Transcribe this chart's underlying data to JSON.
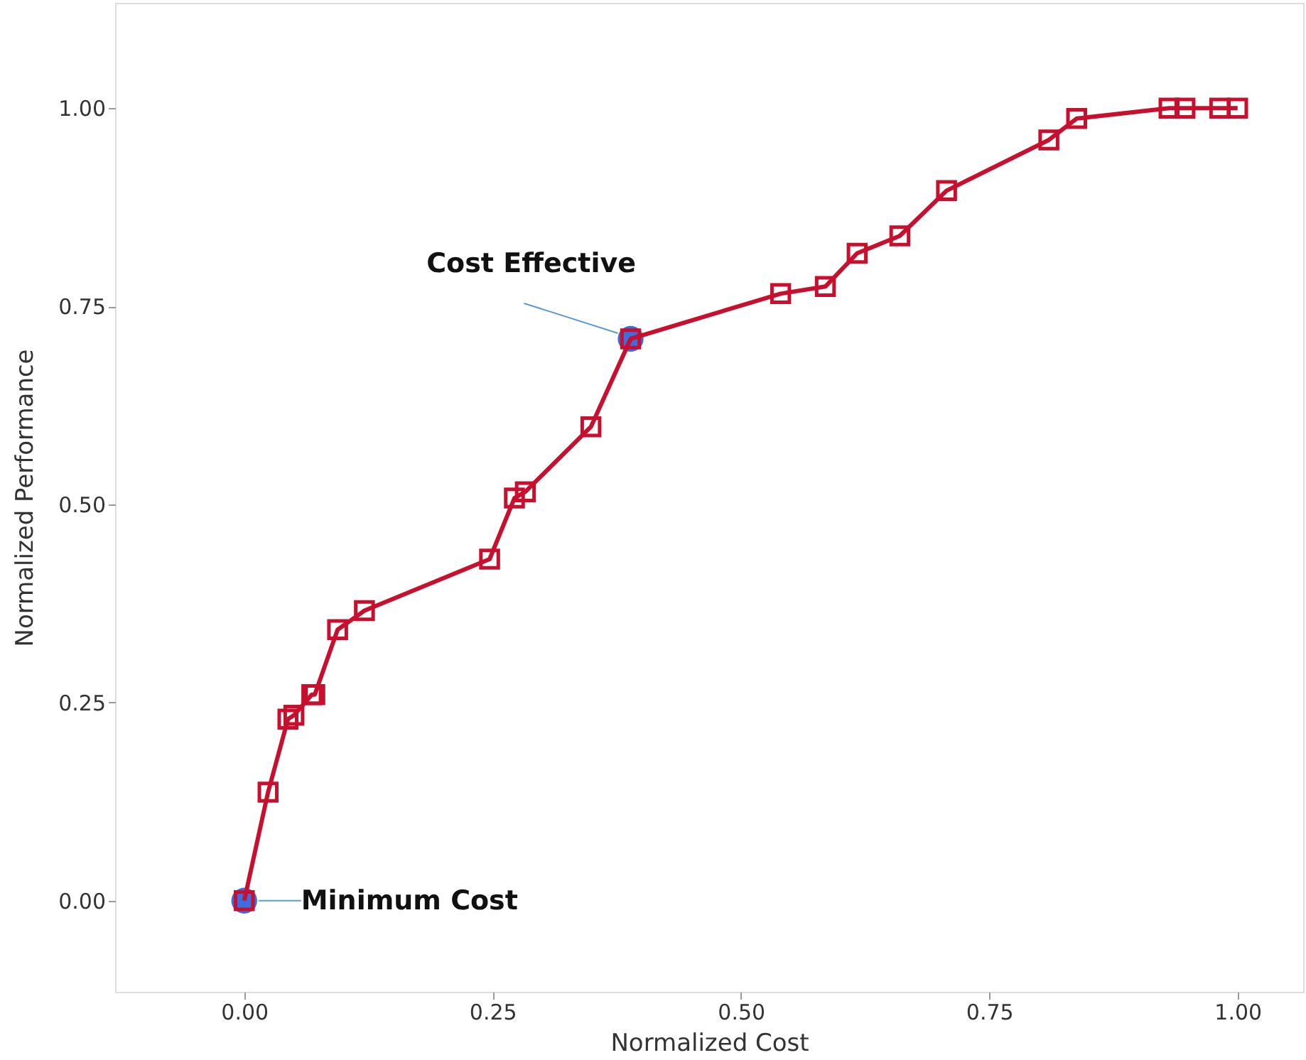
{
  "chart_data": {
    "type": "line",
    "xlabel": "Normalized Cost",
    "ylabel": "Normalized Performance",
    "xlim": [
      -0.13,
      1.066
    ],
    "ylim": [
      -0.115,
      1.133
    ],
    "xticks": [
      {
        "value": 0,
        "label": "0.00"
      },
      {
        "value": 0.25,
        "label": "0.25"
      },
      {
        "value": 0.5,
        "label": "0.50"
      },
      {
        "value": 0.75,
        "label": "0.75"
      },
      {
        "value": 1,
        "label": "1.00"
      }
    ],
    "yticks": [
      {
        "value": 0,
        "label": "0.00"
      },
      {
        "value": 0.25,
        "label": "0.25"
      },
      {
        "value": 0.5,
        "label": "0.50"
      },
      {
        "value": 0.75,
        "label": "0.75"
      },
      {
        "value": 1,
        "label": "1.00"
      }
    ],
    "grid": false,
    "series": [
      {
        "type": "scatter",
        "color": "#3b6ee0",
        "marker": "circle",
        "x": [
          0,
          0.389
        ],
        "values": [
          0,
          0.709
        ]
      },
      {
        "color": "#c8102e",
        "marker": "square",
        "line_style": "solid",
        "x": [
          0,
          0.024,
          0.044,
          0.05,
          0.068,
          0.071,
          0.094,
          0.121,
          0.247,
          0.272,
          0.283,
          0.349,
          0.389,
          0.54,
          0.585,
          0.617,
          0.66,
          0.707,
          0.81,
          0.838,
          0.931,
          0.947,
          0.982,
          1.0
        ],
        "values": [
          0,
          0.137,
          0.229,
          0.234,
          0.26,
          0.26,
          0.342,
          0.366,
          0.431,
          0.508,
          0.516,
          0.598,
          0.709,
          0.766,
          0.775,
          0.817,
          0.839,
          0.896,
          0.96,
          0.987,
          1.0,
          1.0,
          1.0,
          1.0
        ]
      }
    ],
    "annotations": [
      {
        "text": "Cost Effective",
        "x": 0.389,
        "y": 0.709
      },
      {
        "text": "Minimum Cost",
        "x": 0,
        "y": 0
      }
    ]
  }
}
